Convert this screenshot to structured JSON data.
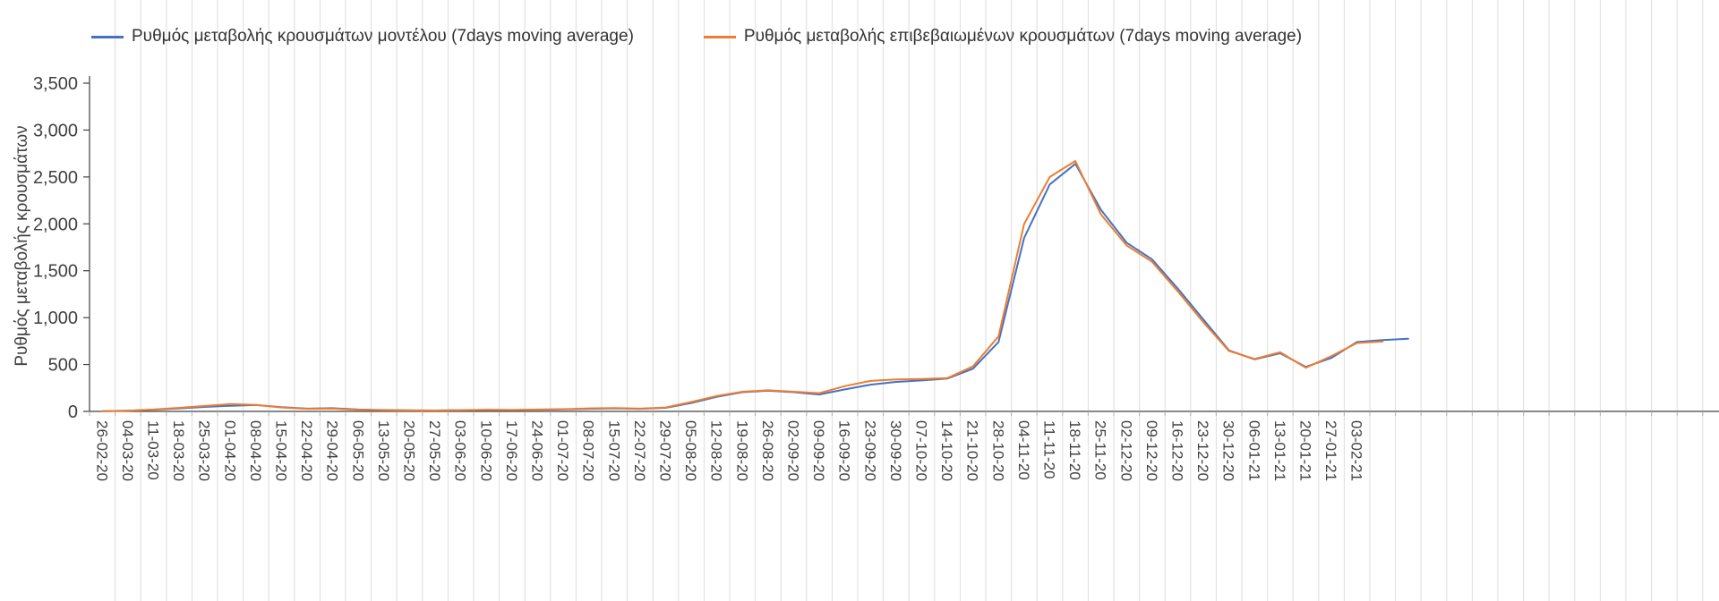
{
  "legend": {
    "position": "top"
  },
  "axis": {
    "y_label": "Ρυθμός μεταβολής κρουσμάτων"
  },
  "colors": {
    "model_series": "#4472C4",
    "confirmed_series": "#ED7D31",
    "gridline": "#dcdcdc",
    "axis_line": "#404040",
    "tick_text": "#404040"
  },
  "chart_data": {
    "type": "line",
    "title": "",
    "xlabel": "",
    "ylabel": "Ρυθμός μεταβολής κρουσμάτων",
    "ylim": [
      0,
      3500
    ],
    "ytick_step": 500,
    "grid": "vertical-only",
    "legend_position": "top",
    "categories": [
      "26-02-20",
      "04-03-20",
      "11-03-20",
      "18-03-20",
      "25-03-20",
      "01-04-20",
      "08-04-20",
      "15-04-20",
      "22-04-20",
      "29-04-20",
      "06-05-20",
      "13-05-20",
      "20-05-20",
      "27-05-20",
      "03-06-20",
      "10-06-20",
      "17-06-20",
      "24-06-20",
      "01-07-20",
      "08-07-20",
      "15-07-20",
      "22-07-20",
      "29-07-20",
      "05-08-20",
      "12-08-20",
      "19-08-20",
      "26-08-20",
      "02-09-20",
      "09-09-20",
      "16-09-20",
      "23-09-20",
      "30-09-20",
      "07-10-20",
      "14-10-20",
      "21-10-20",
      "28-10-20",
      "04-11-20",
      "11-11-20",
      "18-11-20",
      "25-11-20",
      "02-12-20",
      "09-12-20",
      "16-12-20",
      "23-12-20",
      "30-12-20",
      "06-01-21",
      "13-01-21",
      "20-01-21",
      "27-01-21",
      "03-02-21",
      "",
      ""
    ],
    "series": [
      {
        "name": "Ρυθμός μεταβολής κρουσμάτων μοντέλου (7days moving average)",
        "color": "#4472C4",
        "values": [
          3,
          8,
          18,
          32,
          48,
          60,
          68,
          45,
          30,
          34,
          20,
          14,
          12,
          10,
          12,
          15,
          14,
          18,
          22,
          28,
          32,
          28,
          38,
          90,
          155,
          205,
          220,
          205,
          180,
          235,
          285,
          315,
          330,
          350,
          455,
          740,
          1850,
          2420,
          2640,
          2150,
          1800,
          1620,
          1310,
          980,
          650,
          555,
          620,
          475,
          570,
          740,
          760,
          775
        ]
      },
      {
        "name": "Ρυθμός μεταβολής επιβεβαιωμένων κρουσμάτων (7days moving average)",
        "color": "#ED7D31",
        "values": [
          2,
          8,
          20,
          38,
          58,
          78,
          70,
          42,
          28,
          30,
          16,
          12,
          10,
          10,
          13,
          18,
          15,
          20,
          24,
          32,
          36,
          30,
          42,
          100,
          165,
          210,
          225,
          210,
          195,
          270,
          325,
          340,
          345,
          355,
          480,
          800,
          2000,
          2500,
          2670,
          2100,
          1770,
          1595,
          1280,
          950,
          645,
          560,
          630,
          465,
          590,
          730,
          745,
          null
        ]
      }
    ]
  }
}
